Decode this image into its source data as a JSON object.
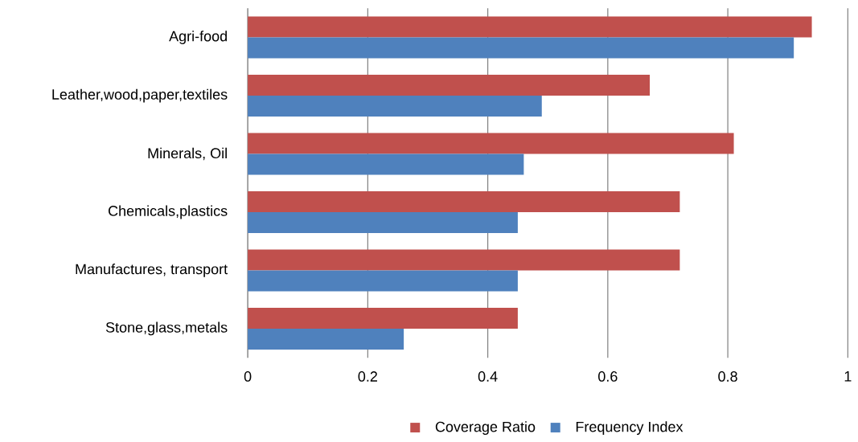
{
  "chart_data": {
    "type": "bar",
    "orientation": "horizontal",
    "categories": [
      "Agri-food",
      "Leather,wood,paper,textiles",
      "Minerals, Oil",
      "Chemicals,plastics",
      "Manufactures, transport",
      "Stone,glass,metals"
    ],
    "series": [
      {
        "name": "Coverage Ratio",
        "color": "#c0504d",
        "values": [
          0.94,
          0.67,
          0.81,
          0.72,
          0.72,
          0.45
        ]
      },
      {
        "name": "Frequency Index",
        "color": "#4f81bd",
        "values": [
          0.91,
          0.49,
          0.46,
          0.45,
          0.45,
          0.26
        ]
      }
    ],
    "xlim": [
      0,
      1
    ],
    "xticks": [
      0,
      0.2,
      0.4,
      0.6,
      0.8,
      1
    ],
    "grid": "x",
    "legend": "bottom"
  }
}
